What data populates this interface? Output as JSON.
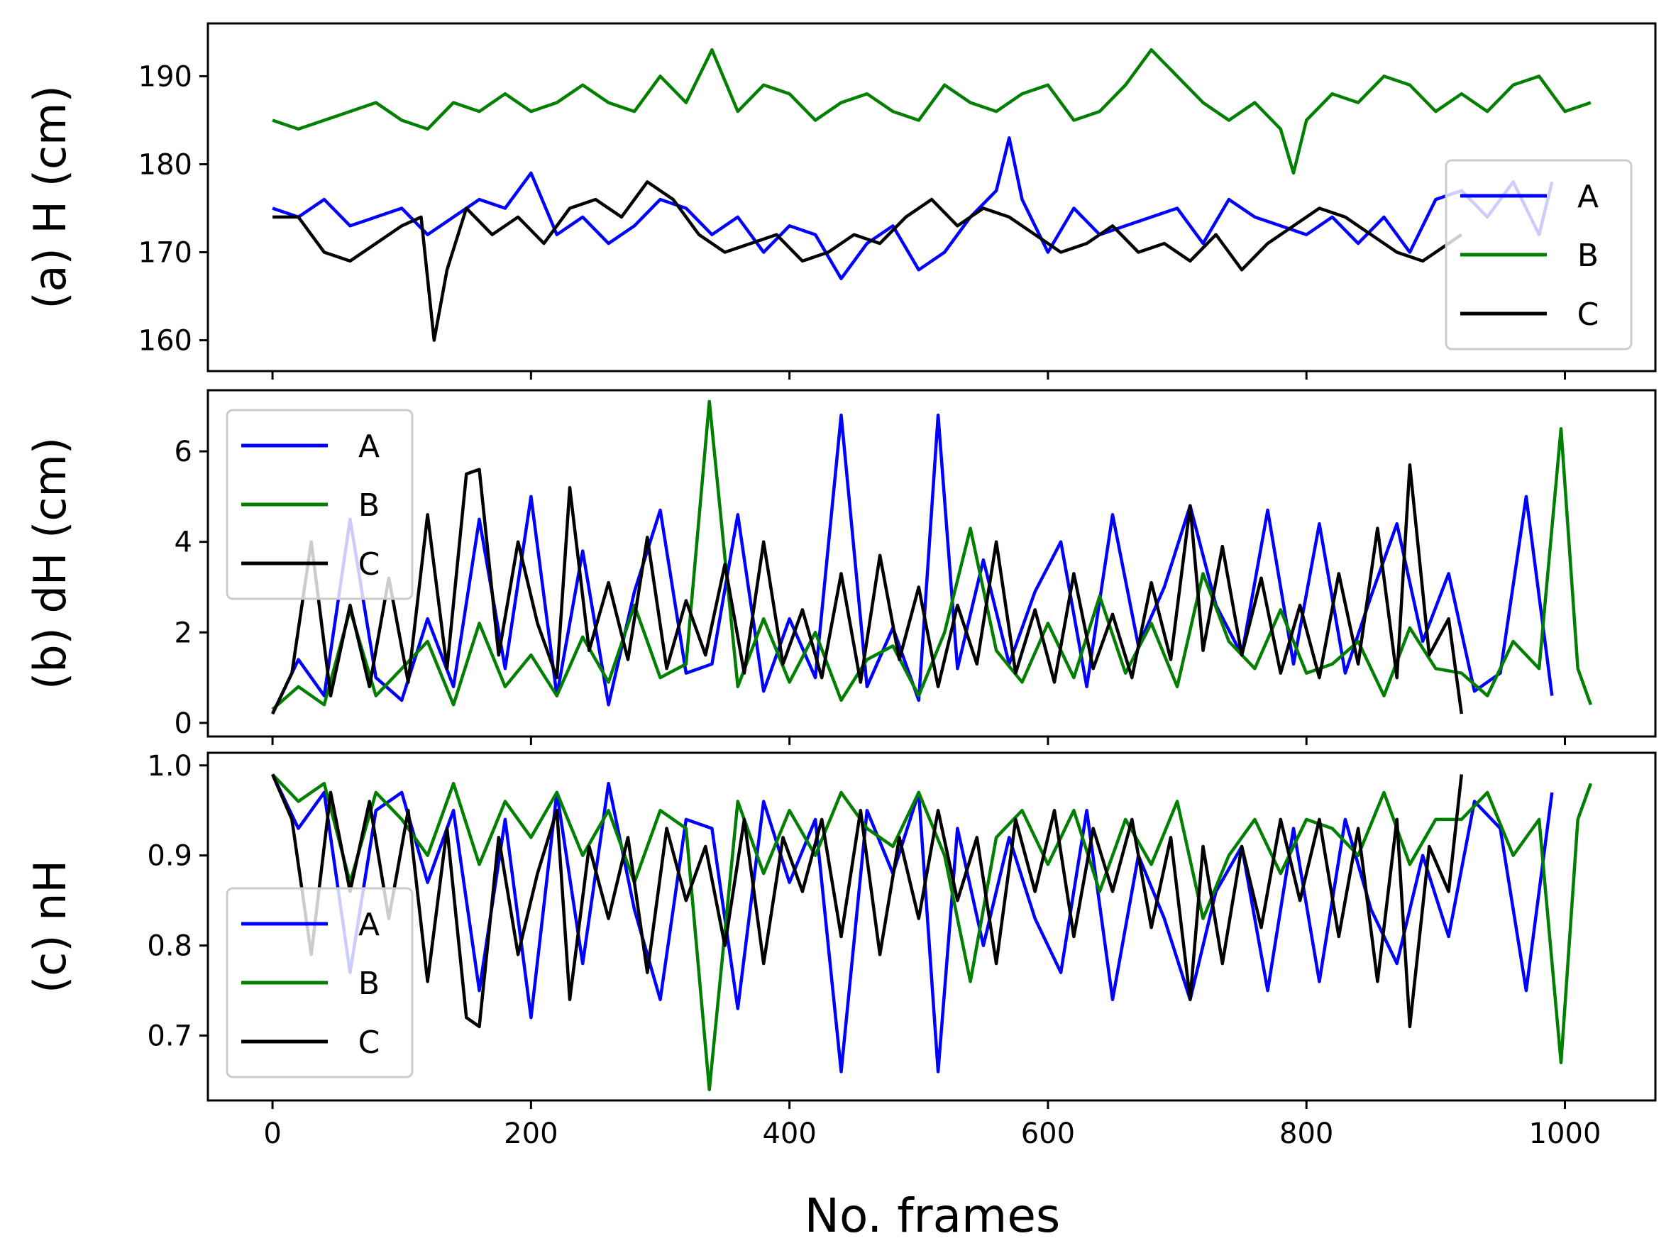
{
  "figure": {
    "xlabel": "No. frames"
  },
  "chart_data": [
    {
      "type": "line",
      "ylabel": "(a) H (cm)",
      "xlim": [
        -50,
        1070
      ],
      "ylim": [
        156.5,
        196
      ],
      "xticks": [
        0,
        200,
        400,
        600,
        800,
        1000
      ],
      "xtick_labels_visible": false,
      "yticks": [
        160,
        170,
        180,
        190
      ],
      "ytick_labels": [
        "160",
        "170",
        "180",
        "190"
      ],
      "grid": false,
      "legend_position": "right",
      "series": [
        {
          "name": "A",
          "color": "#0000ff",
          "x": [
            0,
            20,
            40,
            60,
            80,
            100,
            120,
            140,
            160,
            180,
            200,
            220,
            240,
            260,
            280,
            300,
            320,
            340,
            360,
            380,
            400,
            420,
            440,
            460,
            480,
            500,
            520,
            540,
            560,
            570,
            580,
            600,
            620,
            640,
            660,
            680,
            700,
            720,
            740,
            760,
            780,
            800,
            820,
            840,
            860,
            880,
            900,
            920,
            940,
            960,
            980,
            990
          ],
          "y": [
            175,
            174,
            176,
            173,
            174,
            175,
            172,
            174,
            176,
            175,
            179,
            172,
            174,
            171,
            173,
            176,
            175,
            172,
            174,
            170,
            173,
            172,
            167,
            171,
            173,
            168,
            170,
            174,
            177,
            183,
            176,
            170,
            175,
            172,
            173,
            174,
            175,
            171,
            176,
            174,
            173,
            172,
            174,
            171,
            174,
            170,
            176,
            177,
            174,
            178,
            172,
            178
          ]
        },
        {
          "name": "B",
          "color": "#007f00",
          "x": [
            0,
            20,
            40,
            60,
            80,
            100,
            120,
            140,
            160,
            180,
            200,
            220,
            240,
            260,
            280,
            300,
            320,
            340,
            360,
            380,
            400,
            420,
            440,
            460,
            480,
            500,
            520,
            540,
            560,
            580,
            600,
            620,
            640,
            660,
            680,
            700,
            720,
            740,
            760,
            780,
            790,
            800,
            820,
            840,
            860,
            880,
            900,
            920,
            940,
            960,
            980,
            1000,
            1020
          ],
          "y": [
            185,
            184,
            185,
            186,
            187,
            185,
            184,
            187,
            186,
            188,
            186,
            187,
            189,
            187,
            186,
            190,
            187,
            193,
            186,
            189,
            188,
            185,
            187,
            188,
            186,
            185,
            189,
            187,
            186,
            188,
            189,
            185,
            186,
            189,
            193,
            190,
            187,
            185,
            187,
            184,
            179,
            185,
            188,
            187,
            190,
            189,
            186,
            188,
            186,
            189,
            190,
            186,
            187
          ]
        },
        {
          "name": "C",
          "color": "#000000",
          "x": [
            0,
            20,
            40,
            60,
            80,
            100,
            115,
            125,
            135,
            150,
            170,
            190,
            210,
            230,
            250,
            270,
            290,
            310,
            330,
            350,
            370,
            390,
            410,
            430,
            450,
            470,
            490,
            510,
            530,
            550,
            570,
            590,
            610,
            630,
            650,
            670,
            690,
            710,
            730,
            750,
            770,
            790,
            810,
            830,
            850,
            870,
            890,
            910,
            920
          ],
          "y": [
            174,
            174,
            170,
            169,
            171,
            173,
            174,
            160,
            168,
            175,
            172,
            174,
            171,
            175,
            176,
            174,
            178,
            176,
            172,
            170,
            171,
            172,
            169,
            170,
            172,
            171,
            174,
            176,
            173,
            175,
            174,
            172,
            170,
            171,
            173,
            170,
            171,
            169,
            172,
            168,
            171,
            173,
            175,
            174,
            172,
            170,
            169,
            171,
            172
          ]
        }
      ]
    },
    {
      "type": "line",
      "ylabel": "(b) dH (cm)",
      "xlim": [
        -50,
        1070
      ],
      "ylim": [
        -0.3,
        7.35
      ],
      "xticks": [
        0,
        200,
        400,
        600,
        800,
        1000
      ],
      "xtick_labels_visible": false,
      "yticks": [
        0,
        2,
        4,
        6
      ],
      "ytick_labels": [
        "0",
        "2",
        "4",
        "6"
      ],
      "grid": false,
      "legend_position": "upper left",
      "series": [
        {
          "name": "A",
          "color": "#0000ff",
          "x": [
            0,
            20,
            40,
            60,
            80,
            100,
            120,
            140,
            160,
            180,
            200,
            220,
            240,
            260,
            280,
            300,
            320,
            340,
            360,
            380,
            400,
            420,
            440,
            460,
            480,
            500,
            515,
            530,
            550,
            570,
            590,
            610,
            630,
            650,
            670,
            690,
            710,
            730,
            750,
            770,
            790,
            810,
            830,
            850,
            870,
            890,
            910,
            930,
            950,
            970,
            990
          ],
          "y": [
            0.2,
            1.4,
            0.6,
            4.5,
            1.0,
            0.5,
            2.3,
            0.8,
            4.5,
            1.2,
            5.0,
            0.6,
            3.8,
            0.4,
            2.9,
            4.7,
            1.1,
            1.3,
            4.6,
            0.7,
            2.3,
            1.0,
            6.8,
            0.8,
            2.1,
            0.5,
            6.8,
            1.2,
            3.6,
            1.3,
            2.9,
            4.0,
            0.8,
            4.6,
            1.7,
            3.0,
            4.8,
            2.6,
            1.5,
            4.7,
            1.3,
            4.4,
            1.1,
            2.8,
            4.4,
            1.8,
            3.3,
            0.7,
            1.1,
            5.0,
            0.6
          ]
        },
        {
          "name": "B",
          "color": "#007f00",
          "x": [
            0,
            20,
            40,
            60,
            80,
            100,
            120,
            140,
            160,
            180,
            200,
            220,
            240,
            260,
            280,
            300,
            320,
            338,
            360,
            380,
            400,
            420,
            440,
            460,
            480,
            500,
            520,
            540,
            560,
            580,
            600,
            620,
            640,
            660,
            680,
            700,
            720,
            740,
            760,
            780,
            800,
            820,
            840,
            860,
            880,
            900,
            920,
            940,
            960,
            980,
            997,
            1010,
            1020
          ],
          "y": [
            0.3,
            0.8,
            0.4,
            2.5,
            0.6,
            1.2,
            1.8,
            0.4,
            2.2,
            0.8,
            1.5,
            0.6,
            1.9,
            0.9,
            2.6,
            1.0,
            1.3,
            7.1,
            0.8,
            2.3,
            0.9,
            2.0,
            0.5,
            1.4,
            1.7,
            0.6,
            2.0,
            4.3,
            1.6,
            0.9,
            2.2,
            1.0,
            2.8,
            1.1,
            2.2,
            0.8,
            3.3,
            1.8,
            1.2,
            2.5,
            1.1,
            1.3,
            1.8,
            0.6,
            2.1,
            1.2,
            1.1,
            0.6,
            1.8,
            1.2,
            6.5,
            1.2,
            0.4
          ]
        },
        {
          "name": "C",
          "color": "#000000",
          "x": [
            0,
            15,
            30,
            45,
            60,
            75,
            90,
            105,
            120,
            135,
            150,
            160,
            175,
            190,
            205,
            220,
            230,
            245,
            260,
            275,
            290,
            305,
            320,
            335,
            350,
            365,
            380,
            395,
            410,
            425,
            440,
            455,
            470,
            485,
            500,
            515,
            530,
            545,
            560,
            575,
            590,
            605,
            620,
            635,
            650,
            665,
            680,
            695,
            710,
            720,
            735,
            750,
            765,
            780,
            795,
            810,
            825,
            840,
            855,
            870,
            880,
            895,
            910,
            920
          ],
          "y": [
            0.2,
            1.1,
            4.0,
            0.6,
            2.6,
            0.8,
            3.2,
            0.9,
            4.6,
            1.2,
            5.5,
            5.6,
            1.5,
            4.0,
            2.2,
            1.0,
            5.2,
            1.6,
            3.1,
            1.4,
            4.1,
            1.2,
            2.7,
            1.5,
            3.5,
            1.1,
            4.0,
            1.3,
            2.5,
            1.0,
            3.3,
            0.9,
            3.7,
            1.4,
            3.0,
            0.8,
            2.6,
            1.3,
            4.0,
            1.1,
            2.5,
            0.9,
            3.3,
            1.2,
            2.4,
            1.0,
            3.1,
            1.4,
            4.8,
            1.6,
            3.9,
            1.5,
            3.2,
            1.1,
            2.6,
            1.0,
            3.3,
            1.3,
            4.3,
            1.0,
            5.7,
            1.5,
            2.3,
            0.2
          ]
        }
      ]
    },
    {
      "type": "line",
      "ylabel": "(c) nH",
      "xlim": [
        -50,
        1070
      ],
      "ylim": [
        0.628,
        1.014
      ],
      "xticks": [
        0,
        200,
        400,
        600,
        800,
        1000
      ],
      "xtick_labels": [
        "0",
        "200",
        "400",
        "600",
        "800",
        "1000"
      ],
      "yticks": [
        0.7,
        0.8,
        0.9,
        1.0
      ],
      "ytick_labels": [
        "0.7",
        "0.8",
        "0.9",
        "1.0"
      ],
      "grid": false,
      "legend_position": "lower left",
      "series": [
        {
          "name": "A",
          "color": "#0000ff",
          "x": [
            0,
            20,
            40,
            60,
            80,
            100,
            120,
            140,
            160,
            180,
            200,
            220,
            240,
            260,
            280,
            300,
            320,
            340,
            360,
            380,
            400,
            420,
            440,
            460,
            480,
            500,
            515,
            530,
            550,
            570,
            590,
            610,
            630,
            650,
            670,
            690,
            710,
            730,
            750,
            770,
            790,
            810,
            830,
            850,
            870,
            890,
            910,
            930,
            950,
            970,
            990
          ],
          "y": [
            0.99,
            0.93,
            0.97,
            0.77,
            0.95,
            0.97,
            0.87,
            0.95,
            0.75,
            0.94,
            0.72,
            0.97,
            0.78,
            0.98,
            0.84,
            0.74,
            0.94,
            0.93,
            0.73,
            0.96,
            0.87,
            0.94,
            0.66,
            0.95,
            0.88,
            0.97,
            0.66,
            0.93,
            0.8,
            0.92,
            0.83,
            0.77,
            0.95,
            0.74,
            0.9,
            0.83,
            0.74,
            0.86,
            0.91,
            0.75,
            0.93,
            0.76,
            0.94,
            0.84,
            0.78,
            0.9,
            0.81,
            0.96,
            0.93,
            0.75,
            0.97
          ]
        },
        {
          "name": "B",
          "color": "#007f00",
          "x": [
            0,
            20,
            40,
            60,
            80,
            100,
            120,
            140,
            160,
            180,
            200,
            220,
            240,
            260,
            280,
            300,
            320,
            338,
            360,
            380,
            400,
            420,
            440,
            460,
            480,
            500,
            520,
            540,
            560,
            580,
            600,
            620,
            640,
            660,
            680,
            700,
            720,
            740,
            760,
            780,
            800,
            820,
            840,
            860,
            880,
            900,
            920,
            940,
            960,
            980,
            997,
            1010,
            1020
          ],
          "y": [
            0.99,
            0.96,
            0.98,
            0.87,
            0.97,
            0.94,
            0.9,
            0.98,
            0.89,
            0.96,
            0.92,
            0.97,
            0.9,
            0.95,
            0.87,
            0.95,
            0.93,
            0.64,
            0.96,
            0.88,
            0.95,
            0.9,
            0.97,
            0.93,
            0.91,
            0.97,
            0.9,
            0.76,
            0.92,
            0.95,
            0.89,
            0.95,
            0.86,
            0.94,
            0.89,
            0.96,
            0.83,
            0.9,
            0.94,
            0.88,
            0.94,
            0.93,
            0.9,
            0.97,
            0.89,
            0.94,
            0.94,
            0.97,
            0.9,
            0.94,
            0.67,
            0.94,
            0.98
          ]
        },
        {
          "name": "C",
          "color": "#000000",
          "x": [
            0,
            15,
            30,
            45,
            60,
            75,
            90,
            105,
            120,
            135,
            150,
            160,
            175,
            190,
            205,
            220,
            230,
            245,
            260,
            275,
            290,
            305,
            320,
            335,
            350,
            365,
            380,
            395,
            410,
            425,
            440,
            455,
            470,
            485,
            500,
            515,
            530,
            545,
            560,
            575,
            590,
            605,
            620,
            635,
            650,
            665,
            680,
            695,
            710,
            720,
            735,
            750,
            765,
            780,
            795,
            810,
            825,
            840,
            855,
            870,
            880,
            895,
            910,
            920
          ],
          "y": [
            0.99,
            0.94,
            0.79,
            0.97,
            0.86,
            0.96,
            0.83,
            0.95,
            0.76,
            0.93,
            0.72,
            0.71,
            0.92,
            0.79,
            0.88,
            0.95,
            0.74,
            0.91,
            0.83,
            0.92,
            0.77,
            0.93,
            0.85,
            0.91,
            0.8,
            0.94,
            0.78,
            0.92,
            0.86,
            0.94,
            0.81,
            0.95,
            0.79,
            0.92,
            0.83,
            0.95,
            0.85,
            0.92,
            0.78,
            0.94,
            0.86,
            0.95,
            0.81,
            0.93,
            0.86,
            0.94,
            0.82,
            0.92,
            0.74,
            0.91,
            0.78,
            0.91,
            0.82,
            0.94,
            0.85,
            0.94,
            0.81,
            0.93,
            0.76,
            0.94,
            0.71,
            0.91,
            0.86,
            0.99
          ]
        }
      ]
    }
  ]
}
